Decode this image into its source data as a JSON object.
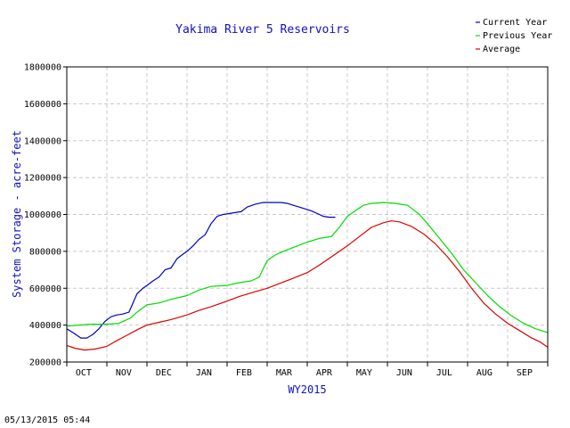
{
  "timestamp": "05/13/2015 05:44",
  "chart_data": {
    "type": "line",
    "title": "Yakima River 5 Reservoirs",
    "xlabel": "WY2015",
    "ylabel": "System Storage - acre-feet",
    "ylim": [
      200000,
      1800000
    ],
    "yticks": [
      200000,
      400000,
      600000,
      800000,
      1000000,
      1200000,
      1400000,
      1600000,
      1800000
    ],
    "ytick_labels": [
      "200000",
      "400000",
      "600000",
      "800000",
      "1000000",
      "1200000",
      "1400000",
      "1600000",
      "1800000"
    ],
    "categories": [
      "OCT",
      "NOV",
      "DEC",
      "JAN",
      "FEB",
      "MAR",
      "APR",
      "MAY",
      "JUN",
      "JUL",
      "AUG",
      "SEP"
    ],
    "grid": true,
    "legend_position": "top-right",
    "series": [
      {
        "name": "Current Year",
        "color": "#0000cc",
        "x": [
          0,
          0.15,
          0.35,
          0.5,
          0.65,
          0.8,
          0.95,
          1.1,
          1.25,
          1.4,
          1.55,
          1.75,
          1.9,
          2.0,
          2.15,
          2.3,
          2.45,
          2.6,
          2.75,
          2.9,
          3.0,
          3.15,
          3.3,
          3.45,
          3.6,
          3.75,
          3.9,
          4.05,
          4.2,
          4.35,
          4.5,
          4.7,
          4.9,
          5.05,
          5.2,
          5.35,
          5.5,
          5.65,
          5.8,
          5.95,
          6.1,
          6.25,
          6.4,
          6.55,
          6.7
        ],
        "values": [
          380000,
          360000,
          330000,
          330000,
          350000,
          380000,
          420000,
          445000,
          455000,
          460000,
          470000,
          570000,
          600000,
          615000,
          640000,
          660000,
          700000,
          710000,
          760000,
          785000,
          800000,
          830000,
          865000,
          890000,
          950000,
          990000,
          1000000,
          1005000,
          1010000,
          1015000,
          1040000,
          1055000,
          1065000,
          1065000,
          1065000,
          1065000,
          1060000,
          1050000,
          1040000,
          1030000,
          1020000,
          1005000,
          990000,
          985000,
          985000
        ]
      },
      {
        "name": "Previous Year",
        "color": "#00dd00",
        "x": [
          0,
          0.3,
          0.6,
          1.0,
          1.3,
          1.6,
          1.75,
          2.0,
          2.3,
          2.6,
          3.0,
          3.3,
          3.6,
          4.0,
          4.3,
          4.6,
          4.8,
          5.0,
          5.2,
          5.4,
          5.7,
          6.0,
          6.3,
          6.6,
          6.8,
          7.0,
          7.2,
          7.4,
          7.6,
          7.9,
          8.2,
          8.5,
          8.8,
          9.0,
          9.3,
          9.6,
          9.9,
          10.2,
          10.5,
          10.8,
          11.1,
          11.4,
          11.7,
          12.0
        ],
        "values": [
          395000,
          400000,
          405000,
          405000,
          410000,
          440000,
          470000,
          510000,
          520000,
          540000,
          560000,
          590000,
          610000,
          615000,
          630000,
          640000,
          660000,
          750000,
          780000,
          800000,
          825000,
          850000,
          870000,
          880000,
          930000,
          990000,
          1020000,
          1050000,
          1060000,
          1065000,
          1060000,
          1050000,
          1000000,
          950000,
          870000,
          790000,
          700000,
          630000,
          560000,
          500000,
          450000,
          410000,
          380000,
          360000
        ]
      },
      {
        "name": "Average",
        "color": "#dd0000",
        "x": [
          0,
          0.2,
          0.45,
          0.7,
          1.0,
          1.2,
          1.5,
          1.8,
          2.0,
          2.3,
          2.6,
          3.0,
          3.3,
          3.6,
          4.0,
          4.3,
          4.6,
          5.0,
          5.3,
          5.6,
          6.0,
          6.3,
          6.6,
          7.0,
          7.3,
          7.6,
          7.9,
          8.1,
          8.3,
          8.6,
          8.9,
          9.2,
          9.5,
          9.8,
          10.1,
          10.4,
          10.7,
          11.0,
          11.3,
          11.6,
          11.8,
          12.0
        ],
        "values": [
          290000,
          275000,
          265000,
          270000,
          285000,
          310000,
          345000,
          380000,
          400000,
          415000,
          430000,
          455000,
          480000,
          500000,
          530000,
          555000,
          575000,
          600000,
          625000,
          650000,
          685000,
          725000,
          770000,
          830000,
          880000,
          930000,
          955000,
          965000,
          960000,
          935000,
          895000,
          840000,
          770000,
          690000,
          600000,
          520000,
          460000,
          410000,
          370000,
          330000,
          310000,
          280000
        ]
      }
    ]
  }
}
